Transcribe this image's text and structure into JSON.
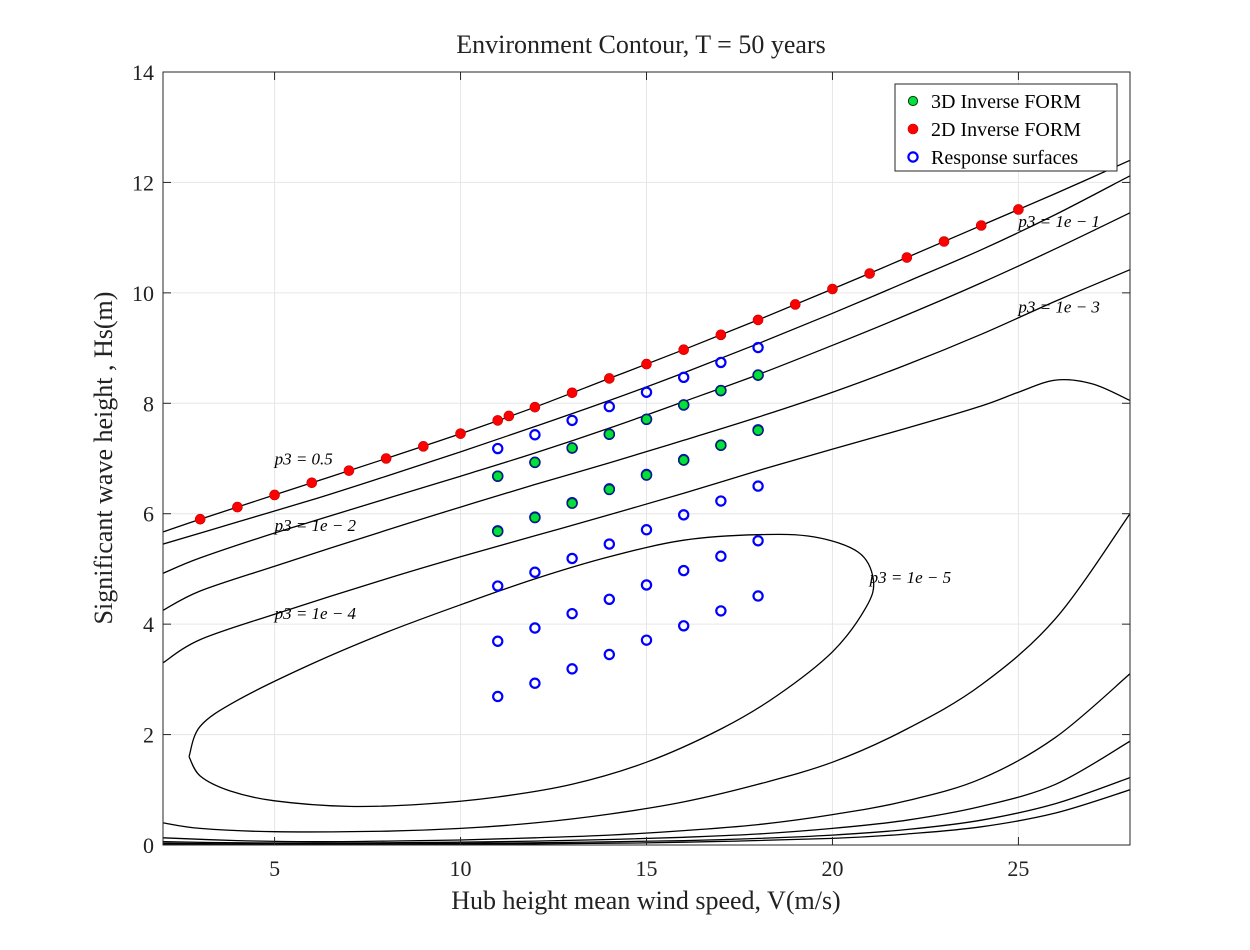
{
  "chart_data": {
    "type": "scatter",
    "title": "Environment Contour, T = 50 years",
    "xlabel": "Hub height mean wind speed, V(m/s)",
    "ylabel": "Significant wave height , Hs(m)",
    "xlim": [
      2,
      28
    ],
    "ylim": [
      0,
      14
    ],
    "xticks": [
      5,
      10,
      15,
      20,
      25
    ],
    "yticks": [
      0,
      2,
      4,
      6,
      8,
      10,
      12,
      14
    ],
    "xtick_labels": [
      "5",
      "10",
      "15",
      "20",
      "25"
    ],
    "ytick_labels": [
      "0",
      "2",
      "4",
      "6",
      "8",
      "10",
      "12",
      "14"
    ],
    "grid": true,
    "legend_position": "top-right",
    "colors": {
      "inverse_form_3d": "#00e040",
      "inverse_form_2d": "#ff0000",
      "response_surfaces": "#0000ff",
      "contour": "#000000",
      "grid": "#e6e6e6"
    },
    "series": [
      {
        "name": "3D Inverse FORM",
        "marker": "filled-circle",
        "points": [
          [
            11,
            6.68
          ],
          [
            12,
            6.93
          ],
          [
            13,
            7.19
          ],
          [
            14,
            7.44
          ],
          [
            15,
            7.71
          ],
          [
            16,
            7.97
          ],
          [
            17,
            8.23
          ],
          [
            18,
            8.51
          ],
          [
            11,
            5.68
          ],
          [
            12,
            5.93
          ],
          [
            13,
            6.19
          ],
          [
            14,
            6.44
          ],
          [
            15,
            6.7
          ],
          [
            16,
            6.97
          ],
          [
            17,
            7.24
          ],
          [
            18,
            7.51
          ]
        ]
      },
      {
        "name": "2D Inverse FORM",
        "marker": "filled-circle",
        "points": [
          [
            3,
            5.9
          ],
          [
            4,
            6.12
          ],
          [
            5,
            6.34
          ],
          [
            6,
            6.56
          ],
          [
            7,
            6.78
          ],
          [
            8,
            7.0
          ],
          [
            9,
            7.22
          ],
          [
            10,
            7.45
          ],
          [
            11,
            7.69
          ],
          [
            11.3,
            7.77
          ],
          [
            12,
            7.93
          ],
          [
            13,
            8.19
          ],
          [
            14,
            8.45
          ],
          [
            15,
            8.71
          ],
          [
            16,
            8.97
          ],
          [
            17,
            9.24
          ],
          [
            18,
            9.51
          ],
          [
            19,
            9.79
          ],
          [
            20,
            10.07
          ],
          [
            21,
            10.35
          ],
          [
            22,
            10.64
          ],
          [
            23,
            10.93
          ],
          [
            24,
            11.22
          ],
          [
            25,
            11.51
          ]
        ]
      },
      {
        "name": "Response surfaces",
        "marker": "open-circle",
        "points": [
          [
            11,
            7.18
          ],
          [
            12,
            7.43
          ],
          [
            13,
            7.69
          ],
          [
            14,
            7.94
          ],
          [
            15,
            8.2
          ],
          [
            16,
            8.47
          ],
          [
            17,
            8.74
          ],
          [
            18,
            9.01
          ],
          [
            11,
            6.68
          ],
          [
            12,
            6.93
          ],
          [
            13,
            7.19
          ],
          [
            14,
            7.44
          ],
          [
            15,
            7.71
          ],
          [
            16,
            7.97
          ],
          [
            17,
            8.23
          ],
          [
            18,
            8.51
          ],
          [
            11,
            5.68
          ],
          [
            12,
            5.93
          ],
          [
            13,
            6.19
          ],
          [
            14,
            6.44
          ],
          [
            15,
            6.7
          ],
          [
            16,
            6.97
          ],
          [
            17,
            7.24
          ],
          [
            18,
            7.51
          ],
          [
            11,
            6.68
          ],
          [
            12,
            6.93
          ],
          [
            13,
            7.19
          ],
          [
            14,
            7.44
          ],
          [
            15,
            7.71
          ],
          [
            16,
            7.97
          ],
          [
            17,
            8.23
          ],
          [
            18,
            8.51
          ],
          [
            11,
            5.69
          ],
          [
            12,
            5.94
          ],
          [
            13,
            6.2
          ],
          [
            14,
            6.45
          ],
          [
            15,
            6.71
          ],
          [
            16,
            6.98
          ],
          [
            17,
            7.24
          ],
          [
            18,
            7.52
          ],
          [
            11,
            4.69
          ],
          [
            12,
            4.94
          ],
          [
            13,
            5.19
          ],
          [
            14,
            5.45
          ],
          [
            15,
            5.71
          ],
          [
            16,
            5.98
          ],
          [
            17,
            6.23
          ],
          [
            18,
            6.5
          ],
          [
            11,
            3.69
          ],
          [
            12,
            3.93
          ],
          [
            13,
            4.19
          ],
          [
            14,
            4.45
          ],
          [
            15,
            4.71
          ],
          [
            16,
            4.97
          ],
          [
            17,
            5.23
          ],
          [
            18,
            5.51
          ],
          [
            11,
            2.69
          ],
          [
            12,
            2.93
          ],
          [
            13,
            3.19
          ],
          [
            14,
            3.45
          ],
          [
            15,
            3.71
          ],
          [
            16,
            3.97
          ],
          [
            17,
            4.24
          ],
          [
            18,
            4.51
          ]
        ]
      }
    ],
    "contours": [
      {
        "points": [
          [
            2,
            5.67
          ],
          [
            3,
            5.9
          ],
          [
            5,
            6.34
          ],
          [
            8,
            7.0
          ],
          [
            10,
            7.45
          ],
          [
            12,
            7.93
          ],
          [
            14,
            8.45
          ],
          [
            16,
            8.97
          ],
          [
            18,
            9.51
          ],
          [
            20,
            10.07
          ],
          [
            22,
            10.64
          ],
          [
            24,
            11.22
          ],
          [
            26,
            11.8
          ],
          [
            28,
            12.4
          ]
        ]
      },
      {
        "points": [
          [
            2,
            5.45
          ],
          [
            4,
            5.85
          ],
          [
            6,
            6.25
          ],
          [
            8,
            6.68
          ],
          [
            10,
            7.12
          ],
          [
            12,
            7.58
          ],
          [
            14,
            8.05
          ],
          [
            16,
            8.55
          ],
          [
            18,
            9.08
          ],
          [
            20,
            9.63
          ],
          [
            22,
            10.2
          ],
          [
            24,
            10.78
          ],
          [
            26,
            11.42
          ],
          [
            28,
            12.12
          ]
        ]
      },
      {
        "points": [
          [
            2,
            4.92
          ],
          [
            3,
            5.2
          ],
          [
            5,
            5.65
          ],
          [
            8,
            6.27
          ],
          [
            10,
            6.68
          ],
          [
            12,
            7.1
          ],
          [
            14,
            7.55
          ],
          [
            16,
            8.03
          ],
          [
            18,
            8.52
          ],
          [
            20,
            9.05
          ],
          [
            22,
            9.6
          ],
          [
            24,
            10.18
          ],
          [
            26,
            10.8
          ],
          [
            28,
            11.45
          ]
        ]
      },
      {
        "points": [
          [
            2,
            4.25
          ],
          [
            3,
            4.6
          ],
          [
            5,
            5.05
          ],
          [
            8,
            5.7
          ],
          [
            10,
            6.12
          ],
          [
            12,
            6.53
          ],
          [
            14,
            6.92
          ],
          [
            16,
            7.33
          ],
          [
            18,
            7.75
          ],
          [
            20,
            8.2
          ],
          [
            22,
            8.7
          ],
          [
            24,
            9.25
          ],
          [
            26,
            9.85
          ],
          [
            28,
            10.42
          ]
        ]
      },
      {
        "points": [
          [
            2,
            3.3
          ],
          [
            3,
            3.72
          ],
          [
            5,
            4.18
          ],
          [
            8,
            4.82
          ],
          [
            10,
            5.22
          ],
          [
            12,
            5.6
          ],
          [
            14,
            5.98
          ],
          [
            16,
            6.37
          ],
          [
            18,
            6.78
          ],
          [
            20,
            7.17
          ],
          [
            22,
            7.55
          ],
          [
            24,
            7.95
          ],
          [
            25,
            8.2
          ],
          [
            26,
            8.42
          ],
          [
            27,
            8.35
          ],
          [
            28,
            8.05
          ]
        ]
      },
      {
        "points": [
          [
            2.7,
            1.6
          ],
          [
            3,
            2.15
          ],
          [
            4,
            2.62
          ],
          [
            6,
            3.28
          ],
          [
            8,
            3.85
          ],
          [
            10,
            4.35
          ],
          [
            12,
            4.82
          ],
          [
            14,
            5.22
          ],
          [
            16,
            5.52
          ],
          [
            18,
            5.62
          ],
          [
            19.5,
            5.58
          ],
          [
            20.7,
            5.3
          ],
          [
            21.1,
            4.8
          ],
          [
            20.9,
            4.3
          ],
          [
            20,
            3.5
          ],
          [
            18.5,
            2.7
          ],
          [
            17,
            2.1
          ],
          [
            15,
            1.5
          ],
          [
            13,
            1.1
          ],
          [
            11,
            0.87
          ],
          [
            9,
            0.74
          ],
          [
            7,
            0.7
          ],
          [
            5,
            0.8
          ],
          [
            3.8,
            0.98
          ],
          [
            3,
            1.25
          ],
          [
            2.7,
            1.6
          ]
        ]
      },
      {
        "points": [
          [
            2,
            0.4
          ],
          [
            3,
            0.3
          ],
          [
            5,
            0.24
          ],
          [
            8,
            0.25
          ],
          [
            10,
            0.3
          ],
          [
            12,
            0.4
          ],
          [
            14,
            0.56
          ],
          [
            16,
            0.78
          ],
          [
            18,
            1.1
          ],
          [
            20,
            1.5
          ],
          [
            22,
            2.1
          ],
          [
            24,
            2.9
          ],
          [
            26,
            4.1
          ],
          [
            28,
            6.0
          ]
        ]
      },
      {
        "points": [
          [
            2,
            0.13
          ],
          [
            4,
            0.08
          ],
          [
            6,
            0.06
          ],
          [
            8,
            0.07
          ],
          [
            10,
            0.09
          ],
          [
            12,
            0.13
          ],
          [
            14,
            0.18
          ],
          [
            16,
            0.26
          ],
          [
            18,
            0.37
          ],
          [
            20,
            0.55
          ],
          [
            22,
            0.8
          ],
          [
            24,
            1.2
          ],
          [
            26,
            1.95
          ],
          [
            28,
            3.1
          ]
        ]
      },
      {
        "points": [
          [
            2,
            0.06
          ],
          [
            4,
            0.04
          ],
          [
            6,
            0.035
          ],
          [
            8,
            0.04
          ],
          [
            10,
            0.05
          ],
          [
            12,
            0.07
          ],
          [
            14,
            0.1
          ],
          [
            16,
            0.14
          ],
          [
            18,
            0.2
          ],
          [
            20,
            0.3
          ],
          [
            22,
            0.45
          ],
          [
            24,
            0.7
          ],
          [
            26,
            1.1
          ],
          [
            28,
            1.88
          ]
        ]
      },
      {
        "points": [
          [
            2,
            0.03
          ],
          [
            4,
            0.02
          ],
          [
            8,
            0.02
          ],
          [
            12,
            0.04
          ],
          [
            16,
            0.08
          ],
          [
            18,
            0.12
          ],
          [
            20,
            0.18
          ],
          [
            22,
            0.28
          ],
          [
            24,
            0.45
          ],
          [
            26,
            0.75
          ],
          [
            28,
            1.22
          ]
        ]
      },
      {
        "points": [
          [
            2,
            0.015
          ],
          [
            6,
            0.01
          ],
          [
            12,
            0.02
          ],
          [
            16,
            0.05
          ],
          [
            20,
            0.12
          ],
          [
            22,
            0.2
          ],
          [
            24,
            0.33
          ],
          [
            26,
            0.58
          ],
          [
            28,
            1.0
          ]
        ]
      }
    ],
    "annotations": [
      {
        "text": "p3 = 0.5",
        "x": 5.0,
        "y": 7.0
      },
      {
        "text": "p3 = 1e − 1",
        "x": 25.0,
        "y": 11.3
      },
      {
        "text": "p3 = 1e − 2",
        "x": 5.0,
        "y": 5.8
      },
      {
        "text": "p3 = 1e − 3",
        "x": 25.0,
        "y": 9.75
      },
      {
        "text": "p3 = 1e − 4",
        "x": 5.0,
        "y": 4.2
      },
      {
        "text": "p3 = 1e − 5",
        "x": 21.0,
        "y": 4.85
      }
    ]
  }
}
